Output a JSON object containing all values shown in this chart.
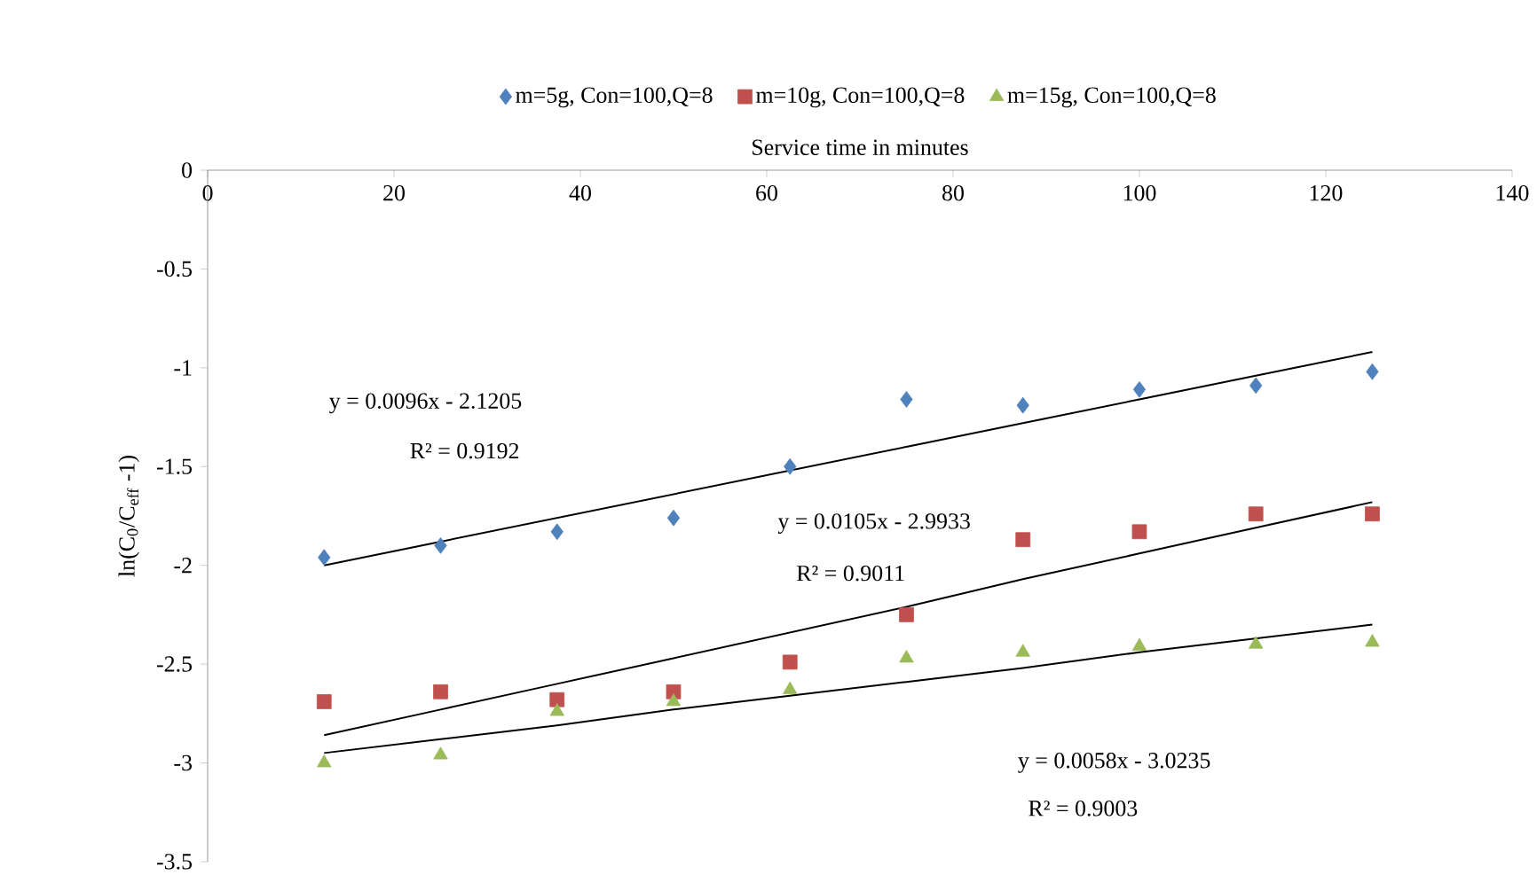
{
  "chart_data": {
    "type": "scatter",
    "xlabel": "Service time in minutes",
    "ylabel": "ln(C$_{0}$/C$_{eff}$ -1)",
    "x": [
      12.5,
      25,
      37.5,
      50,
      62.5,
      75,
      87.5,
      100,
      112.5,
      125
    ],
    "xlim": [
      0,
      140
    ],
    "xticks": [
      0,
      20,
      40,
      60,
      80,
      100,
      120,
      140
    ],
    "ylim": [
      -3.5,
      0
    ],
    "yticks": [
      0,
      -0.5,
      -1,
      -1.5,
      -2,
      -2.5,
      -3,
      -3.5
    ],
    "grid": false,
    "legend": "top",
    "series": [
      {
        "name": "m=5g, Con=100,Q=8",
        "color": "#4f81bd",
        "marker": "diamond",
        "values": [
          -1.96,
          -1.9,
          -1.83,
          -1.76,
          -1.5,
          -1.16,
          -1.19,
          -1.11,
          -1.09,
          -1.02
        ]
      },
      {
        "name": "m=10g, Con=100,Q=8",
        "color": "#c0504d",
        "marker": "square",
        "values": [
          -2.69,
          -2.64,
          -2.68,
          -2.64,
          -2.49,
          -2.25,
          -1.87,
          -1.83,
          -1.74,
          -1.74
        ]
      },
      {
        "name": "m=15g, Con=100,Q=8",
        "color": "#9bbb59",
        "marker": "triangle",
        "values": [
          -3.0,
          -2.96,
          -2.74,
          -2.69,
          -2.63,
          -2.47,
          -2.44,
          -2.41,
          -2.4,
          -2.39
        ]
      },
      {
        "type": "line",
        "color": "#000000",
        "marker": "none",
        "values": [
          -2.0,
          -1.88,
          -1.76,
          -1.64,
          -1.52,
          -1.4,
          -1.28,
          -1.16,
          -1.04,
          -0.92
        ]
      },
      {
        "type": "line",
        "color": "#000000",
        "marker": "none",
        "values": [
          -2.86,
          -2.73,
          -2.6,
          -2.47,
          -2.34,
          -2.21,
          -2.07,
          -1.94,
          -1.81,
          -1.68
        ]
      },
      {
        "type": "line",
        "color": "#000000",
        "marker": "none",
        "values": [
          -2.95,
          -2.88,
          -2.81,
          -2.73,
          -2.66,
          -2.59,
          -2.52,
          -2.44,
          -2.37,
          -2.3
        ]
      }
    ],
    "annotations": [
      "y = 0.0096x - 2.1205",
      "R² = 0.9192",
      "y = 0.0105x - 2.9933",
      "R² = 0.9011",
      "y = 0.0058x - 3.0235",
      "R² = 0.9003"
    ]
  }
}
